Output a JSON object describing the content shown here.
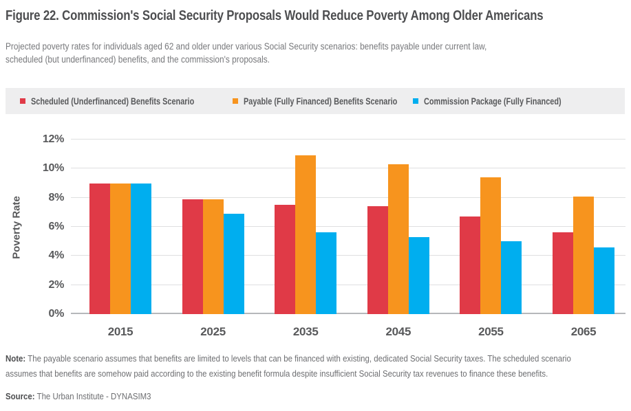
{
  "figure": {
    "title": "Figure 22. Commission's Social Security Proposals Would Reduce Poverty Among Older Americans",
    "subtitle_line1": "Projected poverty rates for individuals aged 62 and older under various Social Security scenarios: benefits payable under current law,",
    "subtitle_line2": "scheduled (but underfinanced) benefits, and the commission's proposals."
  },
  "chart_data": {
    "type": "bar",
    "categories": [
      "2015",
      "2025",
      "2035",
      "2045",
      "2055",
      "2065"
    ],
    "series": [
      {
        "name": "Scheduled (Underfinanced) Benefits Scenario",
        "color": "#E03A47",
        "values": [
          9.0,
          7.9,
          7.5,
          7.4,
          6.7,
          5.6
        ]
      },
      {
        "name": "Payable (Fully Financed) Benefits Scenario",
        "color": "#F7941E",
        "values": [
          9.0,
          7.9,
          10.9,
          10.3,
          9.4,
          8.1
        ]
      },
      {
        "name": "Commission Package (Fully Financed)",
        "color": "#00AEEF",
        "values": [
          9.0,
          6.9,
          5.6,
          5.3,
          5.0,
          4.6
        ]
      }
    ],
    "xlabel": "",
    "ylabel": "Poverty Rate",
    "ylim": [
      0,
      12
    ],
    "ytick_labels": [
      "0%",
      "2%",
      "4%",
      "6%",
      "8%",
      "10%",
      "12%"
    ],
    "grid": true,
    "legend_position": "top"
  },
  "footer": {
    "note_label": "Note:",
    "note_line1": "The payable scenario assumes that benefits are limited to levels that can be financed with existing, dedicated Social Security taxes. The scheduled scenario",
    "note_line2": "assumes that benefits are somehow paid according to the existing benefit formula despite insufficient Social Security tax revenues to finance these benefits.",
    "source_label": "Source:",
    "source_text": "The Urban Institute - DYNASIM3"
  },
  "colors": {
    "scheduled_red": "#E03A47",
    "payable_orange": "#F7941E",
    "commission_blue": "#00AEEF",
    "legend_background": "#EEEEEF",
    "title_text": "#4D4E50",
    "body_text": "#6D6E71",
    "axis_text": "#58595B",
    "gridline": "#DEDFE0",
    "axis_line": "#B5B7BA"
  }
}
